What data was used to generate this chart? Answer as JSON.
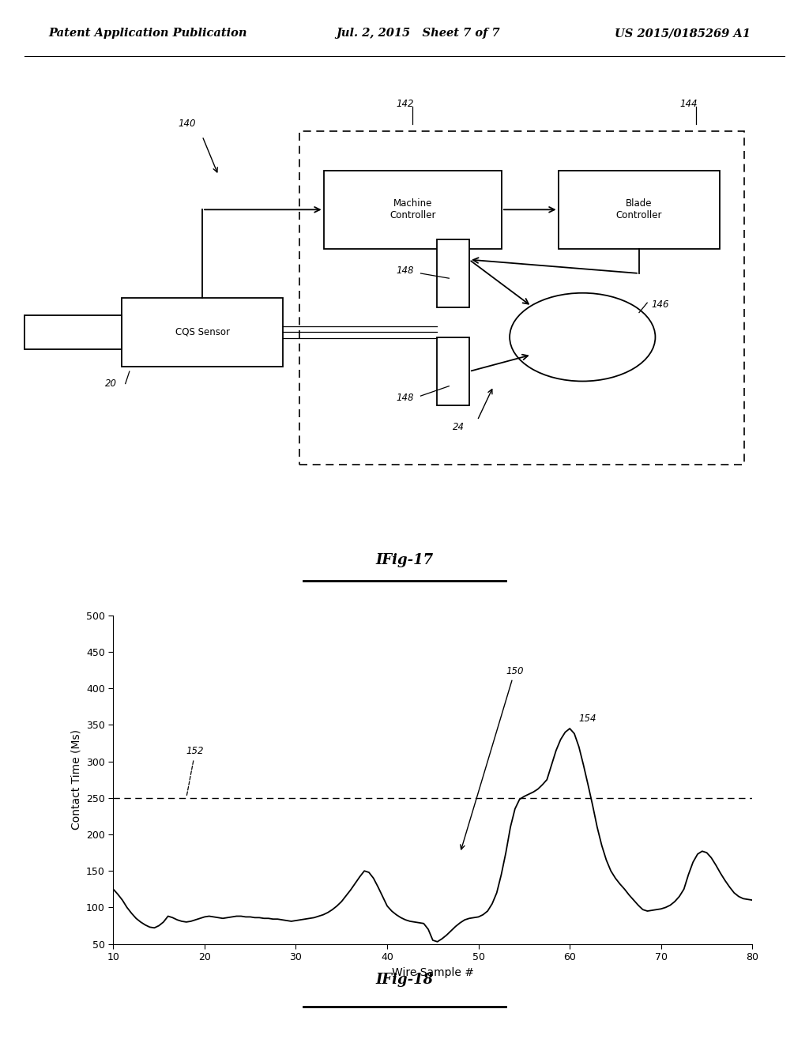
{
  "bg_color": "#ffffff",
  "header_left": "Patent Application Publication",
  "header_center": "Jul. 2, 2015   Sheet 7 of 7",
  "header_right": "US 2015/0185269 A1",
  "fig17_label": "IFig-17",
  "fig18_label": "IFig-18",
  "chart": {
    "xlabel": "Wire Sample #",
    "ylabel": "Contact Time (Ms)",
    "xlim": [
      10,
      80
    ],
    "ylim": [
      50,
      500
    ],
    "xticks": [
      10,
      20,
      30,
      40,
      50,
      60,
      70,
      80
    ],
    "yticks": [
      50,
      100,
      150,
      200,
      250,
      300,
      350,
      400,
      450,
      500
    ],
    "dashed_line_y": 250,
    "line_data_x": [
      10,
      10.5,
      11,
      11.5,
      12,
      12.5,
      13,
      13.5,
      14,
      14.5,
      15,
      15.5,
      16,
      16.5,
      17,
      17.5,
      18,
      18.5,
      19,
      19.5,
      20,
      20.5,
      21,
      21.5,
      22,
      22.5,
      23,
      23.5,
      24,
      24.5,
      25,
      25.5,
      26,
      26.5,
      27,
      27.5,
      28,
      28.5,
      29,
      29.5,
      30,
      30.5,
      31,
      31.5,
      32,
      32.5,
      33,
      33.5,
      34,
      34.5,
      35,
      35.5,
      36,
      36.5,
      37,
      37.5,
      38,
      38.5,
      39,
      39.5,
      40,
      40.5,
      41,
      41.5,
      42,
      42.5,
      43,
      43.5,
      44,
      44.5,
      45,
      45.5,
      46,
      46.5,
      47,
      47.5,
      48,
      48.5,
      49,
      49.5,
      50,
      50.5,
      51,
      51.5,
      52,
      52.5,
      53,
      53.5,
      54,
      54.5,
      55,
      55.5,
      56,
      56.5,
      57,
      57.5,
      58,
      58.5,
      59,
      59.5,
      60,
      60.5,
      61,
      61.5,
      62,
      62.5,
      63,
      63.5,
      64,
      64.5,
      65,
      65.5,
      66,
      66.5,
      67,
      67.5,
      68,
      68.5,
      69,
      69.5,
      70,
      70.5,
      71,
      71.5,
      72,
      72.5,
      73,
      73.5,
      74,
      74.5,
      75,
      75.5,
      76,
      76.5,
      77,
      77.5,
      78,
      78.5,
      79,
      79.5,
      80
    ],
    "line_data_y": [
      125,
      118,
      110,
      100,
      92,
      85,
      80,
      76,
      73,
      72,
      75,
      80,
      88,
      86,
      83,
      81,
      80,
      81,
      83,
      85,
      87,
      88,
      87,
      86,
      85,
      86,
      87,
      88,
      88,
      87,
      87,
      86,
      86,
      85,
      85,
      84,
      84,
      83,
      82,
      81,
      82,
      83,
      84,
      85,
      86,
      88,
      90,
      93,
      97,
      102,
      108,
      116,
      124,
      133,
      142,
      150,
      148,
      140,
      128,
      115,
      102,
      95,
      90,
      86,
      83,
      81,
      80,
      79,
      78,
      70,
      55,
      53,
      57,
      62,
      68,
      74,
      79,
      83,
      85,
      86,
      87,
      90,
      95,
      105,
      120,
      145,
      175,
      210,
      235,
      248,
      252,
      255,
      258,
      262,
      268,
      275,
      295,
      315,
      330,
      340,
      345,
      338,
      320,
      295,
      268,
      240,
      210,
      185,
      165,
      150,
      140,
      132,
      125,
      117,
      110,
      103,
      97,
      95,
      96,
      97,
      98,
      100,
      103,
      108,
      115,
      125,
      145,
      162,
      173,
      177,
      175,
      168,
      158,
      147,
      137,
      128,
      120,
      115,
      112,
      111,
      110
    ]
  }
}
